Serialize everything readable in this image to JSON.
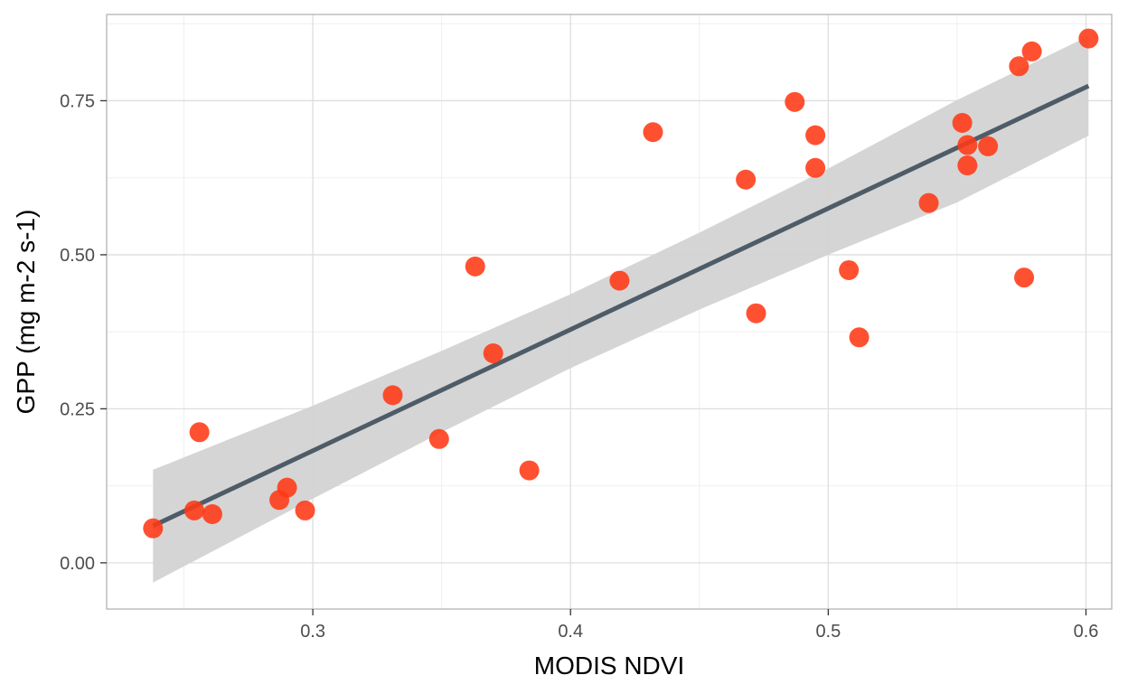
{
  "chart_data": {
    "type": "scatter",
    "xlabel": "MODIS NDVI",
    "ylabel": "GPP (mg m-2 s-1)",
    "xlim": [
      0.22,
      0.61
    ],
    "ylim": [
      -0.075,
      0.89
    ],
    "x_ticks": [
      {
        "value": 0.3,
        "label": "0.3"
      },
      {
        "value": 0.4,
        "label": "0.4"
      },
      {
        "value": 0.5,
        "label": "0.5"
      },
      {
        "value": 0.6,
        "label": "0.6"
      }
    ],
    "y_ticks": [
      {
        "value": 0.0,
        "label": "0.00"
      },
      {
        "value": 0.25,
        "label": "0.25"
      },
      {
        "value": 0.5,
        "label": "0.50"
      },
      {
        "value": 0.75,
        "label": "0.75"
      }
    ],
    "x_minor_ticks": [
      0.25,
      0.35,
      0.45,
      0.55
    ],
    "y_minor_ticks": [
      0.125,
      0.375,
      0.625,
      0.875
    ],
    "grid": true,
    "points": [
      {
        "x": 0.238,
        "y": 0.056
      },
      {
        "x": 0.256,
        "y": 0.212
      },
      {
        "x": 0.254,
        "y": 0.085
      },
      {
        "x": 0.261,
        "y": 0.079
      },
      {
        "x": 0.287,
        "y": 0.102
      },
      {
        "x": 0.29,
        "y": 0.122
      },
      {
        "x": 0.297,
        "y": 0.085
      },
      {
        "x": 0.331,
        "y": 0.272
      },
      {
        "x": 0.349,
        "y": 0.201
      },
      {
        "x": 0.363,
        "y": 0.481
      },
      {
        "x": 0.37,
        "y": 0.34
      },
      {
        "x": 0.384,
        "y": 0.15
      },
      {
        "x": 0.419,
        "y": 0.458
      },
      {
        "x": 0.432,
        "y": 0.699
      },
      {
        "x": 0.468,
        "y": 0.622
      },
      {
        "x": 0.472,
        "y": 0.405
      },
      {
        "x": 0.487,
        "y": 0.748
      },
      {
        "x": 0.495,
        "y": 0.694
      },
      {
        "x": 0.495,
        "y": 0.641
      },
      {
        "x": 0.508,
        "y": 0.475
      },
      {
        "x": 0.512,
        "y": 0.366
      },
      {
        "x": 0.539,
        "y": 0.584
      },
      {
        "x": 0.552,
        "y": 0.714
      },
      {
        "x": 0.554,
        "y": 0.678
      },
      {
        "x": 0.554,
        "y": 0.645
      },
      {
        "x": 0.562,
        "y": 0.676
      },
      {
        "x": 0.574,
        "y": 0.806
      },
      {
        "x": 0.576,
        "y": 0.463
      },
      {
        "x": 0.579,
        "y": 0.83
      },
      {
        "x": 0.601,
        "y": 0.851
      }
    ],
    "fit": {
      "x0": 0.238,
      "y0": 0.06,
      "x1": 0.601,
      "y1": 0.774
    },
    "ci_band": [
      {
        "x": 0.238,
        "lo": -0.032,
        "hi": 0.151
      },
      {
        "x": 0.3,
        "lo": 0.104,
        "hi": 0.255
      },
      {
        "x": 0.35,
        "lo": 0.212,
        "hi": 0.344
      },
      {
        "x": 0.4,
        "lo": 0.316,
        "hi": 0.436
      },
      {
        "x": 0.45,
        "lo": 0.411,
        "hi": 0.536
      },
      {
        "x": 0.5,
        "lo": 0.5,
        "hi": 0.64
      },
      {
        "x": 0.55,
        "lo": 0.585,
        "hi": 0.751
      },
      {
        "x": 0.601,
        "lo": 0.693,
        "hi": 0.855
      }
    ],
    "colors": {
      "points": "#ff3915",
      "fit_line": "#4e5c68",
      "band": "#d3d3d3",
      "grid_major": "#dedede",
      "grid_minor": "#efefef",
      "panel_border": "#b3b3b3"
    }
  }
}
